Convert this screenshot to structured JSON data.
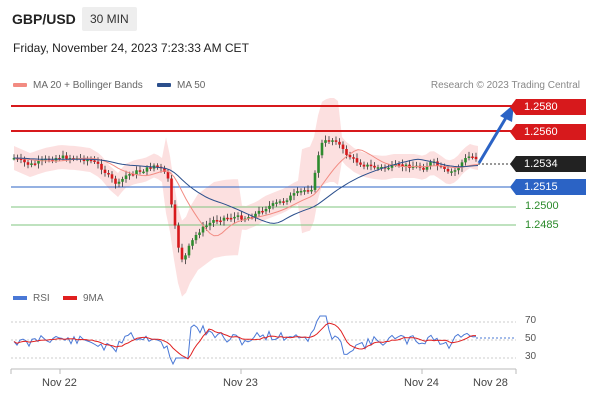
{
  "header": {
    "pair": "GBP/USD",
    "timeframe": "30 MIN",
    "datetime": "Friday, November 24, 2023 7:23:33 AM CET"
  },
  "legend": {
    "ma20": "MA 20 + Bollinger Bands",
    "ma50": "MA 50",
    "credit": "Research © 2023 Trading Central",
    "colors": {
      "ma20": "#f28b82",
      "ma50": "#2b4f8c"
    }
  },
  "levels": {
    "r2": "1.2580",
    "r1": "1.2560",
    "current": "1.2534",
    "pivot": "1.2515",
    "s1": "1.2500",
    "s2": "1.2485"
  },
  "rsi_legend": {
    "rsi": "RSI",
    "ma": "9MA",
    "colors": {
      "rsi": "#4a78d6",
      "ma": "#e02020"
    }
  },
  "rsi_ticks": [
    "70",
    "50",
    "30"
  ],
  "x_axis": [
    "Nov 22",
    "Nov 23",
    "Nov 24",
    "Nov 28"
  ],
  "colors": {
    "up": "#2e8b2e",
    "down": "#d7191c",
    "resistance": "#d7191c",
    "pivot": "#2b63c5",
    "support": "#7fc47f",
    "band": "#fbd5d5"
  }
}
